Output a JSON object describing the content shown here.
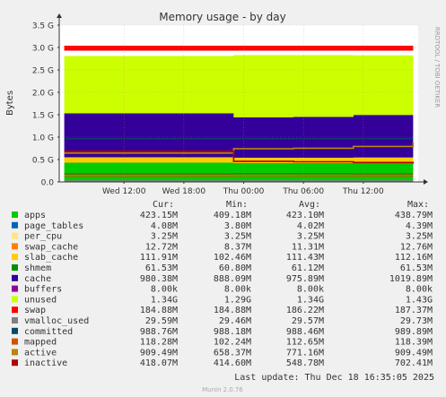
{
  "chart_data": {
    "type": "area",
    "title": "Memory usage - by day",
    "ylabel": "Bytes",
    "side_label": "RRDTOOL / TOBI OETIKER",
    "y_ticks": [
      {
        "value": 0,
        "label": "0.0"
      },
      {
        "value": 0.5,
        "label": "0.5 G"
      },
      {
        "value": 1.0,
        "label": "1.0 G"
      },
      {
        "value": 1.5,
        "label": "1.5 G"
      },
      {
        "value": 2.0,
        "label": "2.0 G"
      },
      {
        "value": 2.5,
        "label": "2.5 G"
      },
      {
        "value": 3.0,
        "label": "3.0 G"
      },
      {
        "value": 3.5,
        "label": "3.5 G"
      }
    ],
    "ylim": [
      0,
      3.5
    ],
    "x_ticks": [
      "Wed 12:00",
      "Wed 18:00",
      "Thu 00:00",
      "Thu 06:00",
      "Thu 12:00"
    ],
    "x_tick_hours": [
      12,
      18,
      24,
      30,
      36
    ],
    "xlim_hours": [
      5.5,
      41.5
    ],
    "grid": true,
    "legend_headers": [
      "Cur:",
      "Min:",
      "Avg:",
      "Max:"
    ],
    "series": [
      {
        "name": "apps",
        "color": "#00cc00",
        "cur": "423.15M",
        "min": "409.18M",
        "avg": "423.10M",
        "max": "438.79M"
      },
      {
        "name": "page_tables",
        "color": "#0066b3",
        "cur": "4.08M",
        "min": "3.80M",
        "avg": "4.02M",
        "max": "4.39M"
      },
      {
        "name": "per_cpu",
        "color": "#ffe680",
        "cur": "3.25M",
        "min": "3.25M",
        "avg": "3.25M",
        "max": "3.25M"
      },
      {
        "name": "swap_cache",
        "color": "#ff8000",
        "cur": "12.72M",
        "min": "8.37M",
        "avg": "11.31M",
        "max": "12.76M"
      },
      {
        "name": "slab_cache",
        "color": "#ffcc00",
        "cur": "111.91M",
        "min": "102.46M",
        "avg": "111.43M",
        "max": "112.16M"
      },
      {
        "name": "shmem",
        "color": "#008f00",
        "cur": "61.53M",
        "min": "60.80M",
        "avg": "61.12M",
        "max": "61.53M"
      },
      {
        "name": "cache",
        "color": "#330099",
        "cur": "980.38M",
        "min": "888.09M",
        "avg": "975.89M",
        "max": "1019.89M"
      },
      {
        "name": "buffers",
        "color": "#990099",
        "cur": "8.00k",
        "min": "8.00k",
        "avg": "8.00k",
        "max": "8.00k"
      },
      {
        "name": "unused",
        "color": "#ccff00",
        "cur": "1.34G",
        "min": "1.29G",
        "avg": "1.34G",
        "max": "1.43G"
      },
      {
        "name": "swap",
        "color": "#ff0000",
        "cur": "184.88M",
        "min": "184.88M",
        "avg": "186.22M",
        "max": "187.37M"
      },
      {
        "name": "vmalloc_used",
        "color": "#808080",
        "cur": "29.59M",
        "min": "29.46M",
        "avg": "29.57M",
        "max": "29.73M"
      },
      {
        "name": "committed",
        "color": "#004d66",
        "cur": "988.76M",
        "min": "988.18M",
        "avg": "988.46M",
        "max": "989.89M"
      },
      {
        "name": "mapped",
        "color": "#cc5500",
        "cur": "118.28M",
        "min": "102.24M",
        "avg": "112.65M",
        "max": "118.39M"
      },
      {
        "name": "active",
        "color": "#b8860b",
        "cur": "909.49M",
        "min": "658.37M",
        "avg": "771.16M",
        "max": "909.49M"
      },
      {
        "name": "inactive",
        "color": "#b30000",
        "cur": "418.07M",
        "min": "414.60M",
        "avg": "548.78M",
        "max": "702.41M"
      }
    ],
    "segments": {
      "hours": [
        6,
        21.8,
        23,
        29,
        35,
        41
      ],
      "apps": [
        0.43,
        0.43,
        0.42,
        0.42,
        0.425,
        0.425
      ],
      "cache": [
        0.98,
        0.98,
        0.9,
        0.91,
        0.95,
        0.98
      ],
      "unused": [
        1.28,
        1.28,
        1.39,
        1.38,
        1.33,
        1.3
      ],
      "active_mb": [
        660,
        660,
        760,
        770,
        810,
        909
      ],
      "inactive_mb": [
        700,
        700,
        470,
        460,
        445,
        418
      ]
    },
    "last_update": "Last update: Thu Dec 18 16:35:05 2025",
    "footer": "Munin 2.0.76"
  }
}
